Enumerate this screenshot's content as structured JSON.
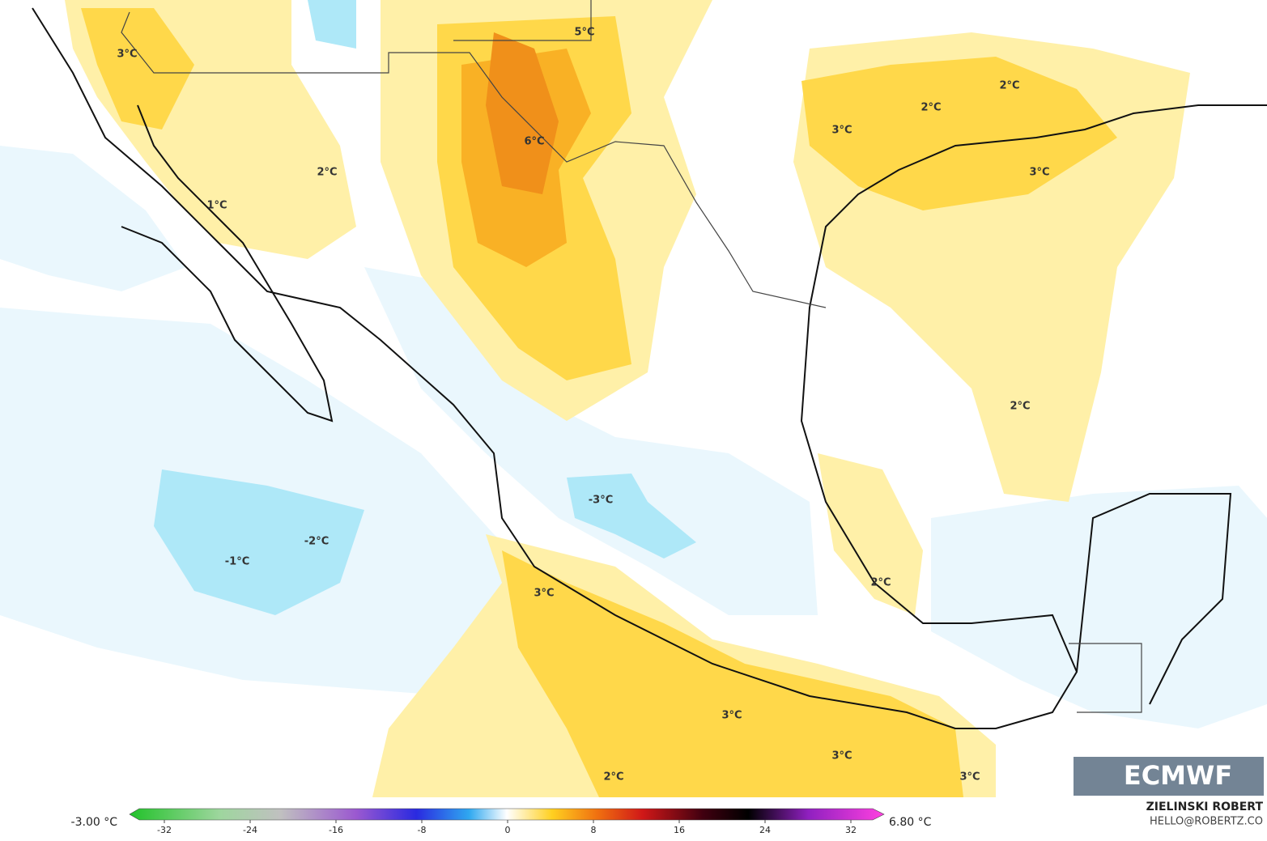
{
  "contour_labels": [
    "3°C",
    "5°C",
    "6°C",
    "2°C",
    "1°C",
    "2°C",
    "2°C",
    "3°C",
    "3°C",
    "2°C",
    "-3°C",
    "-2°C",
    "-1°C",
    "3°C",
    "2°C",
    "3°C",
    "3°C",
    "3°C",
    "2°C"
  ],
  "colorbar": {
    "ticks": [
      -32,
      -24,
      -16,
      -8,
      0,
      8,
      16,
      24,
      32
    ],
    "min_label": "-3.00 °C",
    "max_label": "6.80 °C"
  },
  "credit": {
    "author": "ZIELINSKI ROBERT",
    "contact": "HELLO@ROBERTZ.CO"
  },
  "logo": "ECMWF"
}
